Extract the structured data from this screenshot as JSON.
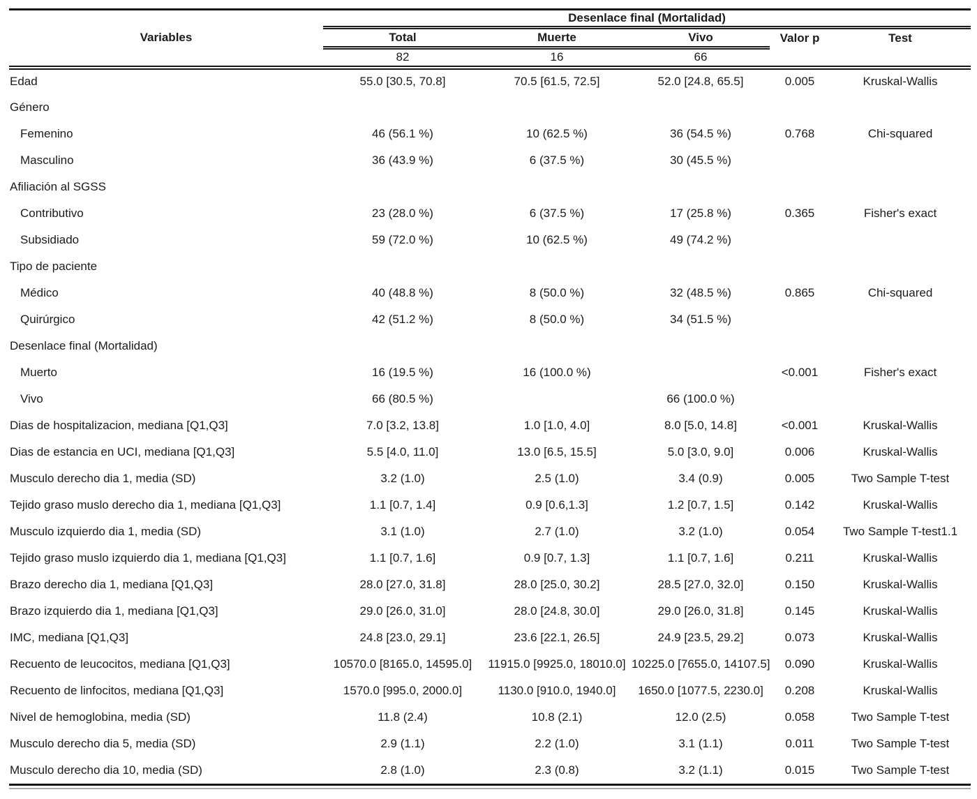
{
  "table": {
    "spanner": "Desenlace final (Mortalidad)",
    "columns": {
      "variables": "Variables",
      "total": "Total",
      "muerte": "Muerte",
      "vivo": "Vivo",
      "valor_p": "Valor p",
      "test": "Test"
    },
    "counts": {
      "total": "82",
      "muerte": "16",
      "vivo": "66"
    },
    "rows": [
      {
        "label": "Edad",
        "indent": false,
        "total": "55.0 [30.5, 70.8]",
        "muerte": "70.5 [61.5, 72.5]",
        "vivo": "52.0 [24.8, 65.5]",
        "p": "0.005",
        "test": "Kruskal-Wallis"
      },
      {
        "label": "Género",
        "indent": false,
        "total": "",
        "muerte": "",
        "vivo": "",
        "p": "",
        "test": ""
      },
      {
        "label": "Femenino",
        "indent": true,
        "total": "46 (56.1 %)",
        "muerte": "10 (62.5 %)",
        "vivo": "36 (54.5 %)",
        "p": "0.768",
        "test": "Chi-squared"
      },
      {
        "label": "Masculino",
        "indent": true,
        "total": "36 (43.9 %)",
        "muerte": "6 (37.5 %)",
        "vivo": "30 (45.5 %)",
        "p": "",
        "test": ""
      },
      {
        "label": "Afiliación al SGSS",
        "indent": false,
        "total": "",
        "muerte": "",
        "vivo": "",
        "p": "",
        "test": ""
      },
      {
        "label": "Contributivo",
        "indent": true,
        "total": "23 (28.0 %)",
        "muerte": "6 (37.5 %)",
        "vivo": "17 (25.8 %)",
        "p": "0.365",
        "test": "Fisher's exact"
      },
      {
        "label": "Subsidiado",
        "indent": true,
        "total": "59 (72.0 %)",
        "muerte": "10 (62.5 %)",
        "vivo": "49 (74.2 %)",
        "p": "",
        "test": ""
      },
      {
        "label": "Tipo de paciente",
        "indent": false,
        "total": "",
        "muerte": "",
        "vivo": "",
        "p": "",
        "test": ""
      },
      {
        "label": "Médico",
        "indent": true,
        "total": "40 (48.8 %)",
        "muerte": "8 (50.0 %)",
        "vivo": "32 (48.5 %)",
        "p": "0.865",
        "test": "Chi-squared"
      },
      {
        "label": "Quirúrgico",
        "indent": true,
        "total": "42 (51.2 %)",
        "muerte": "8 (50.0 %)",
        "vivo": "34 (51.5 %)",
        "p": "",
        "test": ""
      },
      {
        "label": "Desenlace final (Mortalidad)",
        "indent": false,
        "total": "",
        "muerte": "",
        "vivo": "",
        "p": "",
        "test": ""
      },
      {
        "label": "Muerto",
        "indent": true,
        "total": "16 (19.5 %)",
        "muerte": "16 (100.0 %)",
        "vivo": "",
        "p": "<0.001",
        "test": "Fisher's exact"
      },
      {
        "label": "Vivo",
        "indent": true,
        "total": "66 (80.5 %)",
        "muerte": "",
        "vivo": "66 (100.0 %)",
        "p": "",
        "test": ""
      },
      {
        "label": "Dias de hospitalizacion, mediana [Q1,Q3]",
        "indent": false,
        "total": "7.0 [3.2, 13.8]",
        "muerte": "1.0 [1.0, 4.0]",
        "vivo": "8.0 [5.0, 14.8]",
        "p": "<0.001",
        "test": "Kruskal-Wallis"
      },
      {
        "label": "Dias de estancia en UCI, mediana [Q1,Q3]",
        "indent": false,
        "total": "5.5 [4.0, 11.0]",
        "muerte": "13.0 [6.5, 15.5]",
        "vivo": "5.0 [3.0, 9.0]",
        "p": "0.006",
        "test": "Kruskal-Wallis"
      },
      {
        "label": "Musculo derecho dia 1, media (SD)",
        "indent": false,
        "total": "3.2 (1.0)",
        "muerte": "2.5 (1.0)",
        "vivo": "3.4 (0.9)",
        "p": "0.005",
        "test": "Two Sample T-test"
      },
      {
        "label": "Tejido graso muslo derecho dia 1, mediana [Q1,Q3]",
        "indent": false,
        "total": "1.1 [0.7, 1.4]",
        "muerte": "0.9 [0.6,1.3]",
        "vivo": "1.2 [0.7, 1.5]",
        "p": "0.142",
        "test": "Kruskal-Wallis"
      },
      {
        "label": "Musculo izquierdo dia 1, media (SD)",
        "indent": false,
        "total": "3.1 (1.0)",
        "muerte": "2.7 (1.0)",
        "vivo": "3.2 (1.0)",
        "p": "0.054",
        "test": "Two Sample T-test1.1"
      },
      {
        "label": "Tejido graso muslo izquierdo dia 1, mediana [Q1,Q3]",
        "indent": false,
        "total": "1.1 [0.7, 1.6]",
        "muerte": "0.9 [0.7, 1.3]",
        "vivo": "1.1 [0.7, 1.6]",
        "p": "0.211",
        "test": "Kruskal-Wallis"
      },
      {
        "label": "Brazo derecho dia 1, mediana [Q1,Q3]",
        "indent": false,
        "total": "28.0 [27.0, 31.8]",
        "muerte": "28.0 [25.0, 30.2]",
        "vivo": "28.5 [27.0, 32.0]",
        "p": "0.150",
        "test": "Kruskal-Wallis"
      },
      {
        "label": "Brazo izquierdo dia 1, mediana [Q1,Q3]",
        "indent": false,
        "total": "29.0 [26.0, 31.0]",
        "muerte": "28.0 [24.8, 30.0]",
        "vivo": "29.0 [26.0, 31.8]",
        "p": "0.145",
        "test": "Kruskal-Wallis"
      },
      {
        "label": "IMC, mediana [Q1,Q3]",
        "indent": false,
        "total": "24.8 [23.0, 29.1]",
        "muerte": "23.6 [22.1, 26.5]",
        "vivo": "24.9 [23.5, 29.2]",
        "p": "0.073",
        "test": "Kruskal-Wallis"
      },
      {
        "label": "Recuento de leucocitos, mediana [Q1,Q3]",
        "indent": false,
        "total": "10570.0 [8165.0, 14595.0]",
        "muerte": "11915.0 [9925.0, 18010.0]",
        "vivo": "10225.0 [7655.0, 14107.5]",
        "p": "0.090",
        "test": "Kruskal-Wallis"
      },
      {
        "label": "Recuento de linfocitos, mediana [Q1,Q3]",
        "indent": false,
        "total": "1570.0 [995.0, 2000.0]",
        "muerte": "1130.0 [910.0, 1940.0]",
        "vivo": "1650.0 [1077.5, 2230.0]",
        "p": "0.208",
        "test": "Kruskal-Wallis"
      },
      {
        "label": "Nivel de hemoglobina, media (SD)",
        "indent": false,
        "total": "11.8 (2.4)",
        "muerte": "10.8 (2.1)",
        "vivo": "12.0 (2.5)",
        "p": "0.058",
        "test": "Two Sample T-test"
      },
      {
        "label": "Musculo derecho dia 5, media (SD)",
        "indent": false,
        "total": "2.9 (1.1)",
        "muerte": "2.2 (1.0)",
        "vivo": "3.1 (1.1)",
        "p": "0.011",
        "test": "Two Sample T-test"
      },
      {
        "label": "Musculo derecho dia 10, media (SD)",
        "indent": false,
        "total": "2.8 (1.0)",
        "muerte": "2.3 (0.8)",
        "vivo": "3.2 (1.1)",
        "p": "0.015",
        "test": "Two Sample T-test"
      }
    ]
  },
  "colors": {
    "background": "#ffffff",
    "text": "#1b1b1d",
    "rule": "#161616",
    "rule_echo": "#a8a8a8"
  }
}
